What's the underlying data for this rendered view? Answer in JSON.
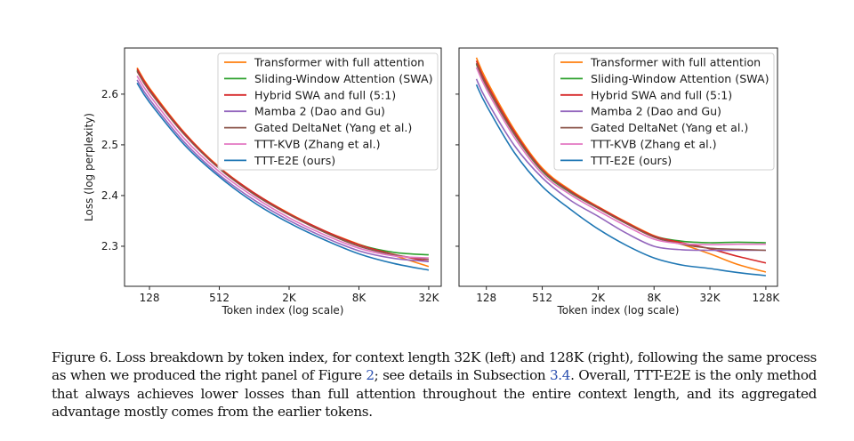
{
  "figure": {
    "caption_parts": [
      {
        "text": "Figure 6. Loss breakdown by token index, for context length 32K (left) and 128K (right), following the same process as when we produced the right panel of Figure ",
        "ref": false
      },
      {
        "text": "2",
        "ref": true
      },
      {
        "text": "; see details in Subsection ",
        "ref": false
      },
      {
        "text": "3.4",
        "ref": true
      },
      {
        "text": ". Overall, TTT-E2E is the only method that always achieves lower losses than full attention throughout the entire context length, and its aggregated advantage mostly comes from the earlier tokens.",
        "ref": false
      }
    ]
  },
  "chart_data": [
    {
      "type": "line",
      "panel": "left",
      "title": "",
      "context_length": "32K",
      "xlabel": "Token index (log scale)",
      "ylabel": "Loss (log perplexity)",
      "xscale": "log2",
      "x_ticks": [
        128,
        512,
        2048,
        8192,
        32768
      ],
      "x_tick_labels": [
        "128",
        "512",
        "2K",
        "8K",
        "32K"
      ],
      "y_ticks": [
        2.3,
        2.4,
        2.5,
        2.6
      ],
      "y_tick_labels": [
        "2.3",
        "2.4",
        "2.5",
        "2.6"
      ],
      "show_y_tick_labels": true,
      "xlim": [
        78,
        42000
      ],
      "ylim": [
        2.221,
        2.691
      ],
      "grid": false,
      "legend_position": "top-right",
      "x": [
        100,
        128,
        256,
        512,
        1024,
        2048,
        4096,
        8192,
        16384,
        32768
      ],
      "series": [
        {
          "name": "Transformer with full attention",
          "color": "#ff7f0e",
          "values": [
            2.652,
            2.612,
            2.524,
            2.456,
            2.405,
            2.365,
            2.331,
            2.304,
            2.282,
            2.26
          ]
        },
        {
          "name": "Sliding-Window Attention (SWA)",
          "color": "#2ca02c",
          "values": [
            2.647,
            2.608,
            2.521,
            2.454,
            2.404,
            2.363,
            2.33,
            2.303,
            2.288,
            2.283
          ]
        },
        {
          "name": "Hybrid SWA and full (5:1)",
          "color": "#d62728",
          "values": [
            2.65,
            2.61,
            2.523,
            2.455,
            2.405,
            2.364,
            2.331,
            2.303,
            2.284,
            2.27
          ]
        },
        {
          "name": "Mamba 2 (Dao and Gu)",
          "color": "#9467bd",
          "values": [
            2.628,
            2.59,
            2.505,
            2.441,
            2.391,
            2.351,
            2.318,
            2.291,
            2.276,
            2.27
          ]
        },
        {
          "name": "Gated DeltaNet (Yang et al.)",
          "color": "#8c564b",
          "values": [
            2.645,
            2.606,
            2.52,
            2.453,
            2.402,
            2.362,
            2.328,
            2.3,
            2.283,
            2.274
          ]
        },
        {
          "name": "TTT-KVB (Zhang et al.)",
          "color": "#e377c2",
          "values": [
            2.636,
            2.598,
            2.512,
            2.447,
            2.397,
            2.356,
            2.323,
            2.296,
            2.281,
            2.277
          ]
        },
        {
          "name": "TTT-E2E (ours)",
          "color": "#1f77b4",
          "values": [
            2.622,
            2.584,
            2.5,
            2.437,
            2.386,
            2.346,
            2.313,
            2.285,
            2.266,
            2.253
          ]
        }
      ]
    },
    {
      "type": "line",
      "panel": "right",
      "title": "",
      "context_length": "128K",
      "xlabel": "Token index (log scale)",
      "ylabel": "",
      "xscale": "log2",
      "x_ticks": [
        128,
        512,
        2048,
        8192,
        32768,
        131072
      ],
      "x_tick_labels": [
        "128",
        "512",
        "2K",
        "8K",
        "32K",
        "128K"
      ],
      "y_ticks": [
        2.3,
        2.4,
        2.5,
        2.6
      ],
      "y_tick_labels": [
        "2.3",
        "2.4",
        "2.5",
        "2.6"
      ],
      "show_y_tick_labels": false,
      "xlim": [
        65,
        175000
      ],
      "ylim": [
        2.221,
        2.691
      ],
      "grid": false,
      "legend_position": "top-right",
      "x": [
        100,
        128,
        256,
        512,
        1024,
        2048,
        4096,
        8192,
        16384,
        32768,
        65536,
        131072
      ],
      "series": [
        {
          "name": "Transformer with full attention",
          "color": "#ff7f0e",
          "values": [
            2.672,
            2.628,
            2.53,
            2.454,
            2.411,
            2.378,
            2.348,
            2.321,
            2.304,
            2.285,
            2.264,
            2.249
          ]
        },
        {
          "name": "Sliding-Window Attention (SWA)",
          "color": "#2ca02c",
          "values": [
            2.659,
            2.616,
            2.521,
            2.448,
            2.406,
            2.375,
            2.345,
            2.32,
            2.31,
            2.307,
            2.308,
            2.307
          ]
        },
        {
          "name": "Hybrid SWA and full (5:1)",
          "color": "#d62728",
          "values": [
            2.666,
            2.622,
            2.526,
            2.451,
            2.409,
            2.377,
            2.347,
            2.32,
            2.307,
            2.295,
            2.28,
            2.267
          ]
        },
        {
          "name": "Mamba 2 (Dao and Gu)",
          "color": "#9467bd",
          "values": [
            2.63,
            2.589,
            2.499,
            2.435,
            2.391,
            2.359,
            2.326,
            2.3,
            2.293,
            2.292,
            2.292,
            2.292
          ]
        },
        {
          "name": "Gated DeltaNet (Yang et al.)",
          "color": "#8c564b",
          "values": [
            2.661,
            2.617,
            2.522,
            2.449,
            2.407,
            2.375,
            2.345,
            2.318,
            2.304,
            2.296,
            2.294,
            2.292
          ]
        },
        {
          "name": "TTT-KVB (Zhang et al.)",
          "color": "#e377c2",
          "values": [
            2.653,
            2.61,
            2.515,
            2.443,
            2.402,
            2.37,
            2.34,
            2.314,
            2.305,
            2.303,
            2.304,
            2.304
          ]
        },
        {
          "name": "TTT-E2E (ours)",
          "color": "#1f77b4",
          "values": [
            2.619,
            2.578,
            2.485,
            2.418,
            2.373,
            2.334,
            2.302,
            2.277,
            2.263,
            2.256,
            2.248,
            2.242
          ]
        }
      ]
    }
  ]
}
